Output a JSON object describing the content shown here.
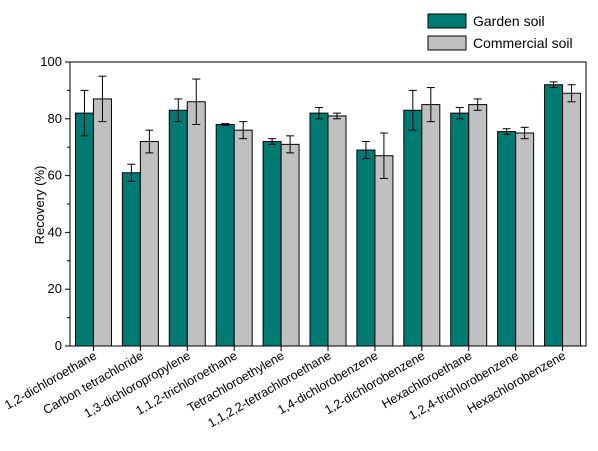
{
  "chart_data": {
    "type": "bar",
    "ylabel": "Recovery (%)",
    "ylim": [
      0,
      100
    ],
    "yticks": [
      0,
      20,
      40,
      60,
      80,
      100
    ],
    "grid": false,
    "legend_position": "top-right",
    "categories": [
      "1,2-dichloroethane",
      "Carbon tetrachloride",
      "1,3-dichloropropylene",
      "1,1,2-trichloroethane",
      "Tetrachloroethylene",
      "1,1,2,2-tetrachloroethane",
      "1,4-dichlorobenzene",
      "1,2-dichlorobenzene",
      "Hexachloroethane",
      "1,2,4-trichlorobenzene",
      "Hexachlorobenzene"
    ],
    "series": [
      {
        "name": "Garden soil",
        "color": "#007b74",
        "values": [
          82,
          61,
          83,
          78,
          72,
          82,
          69,
          83,
          82,
          75.5,
          92
        ],
        "errors": [
          8,
          3,
          4,
          0.3,
          1,
          2,
          3,
          7,
          2,
          1,
          1
        ]
      },
      {
        "name": "Commercial soil",
        "color": "#c0c0c0",
        "values": [
          87,
          72,
          86,
          76,
          71,
          81,
          67,
          85,
          85,
          75,
          89
        ],
        "errors": [
          8,
          4,
          8,
          3,
          3,
          1,
          8,
          6,
          2,
          2,
          3
        ]
      }
    ]
  }
}
